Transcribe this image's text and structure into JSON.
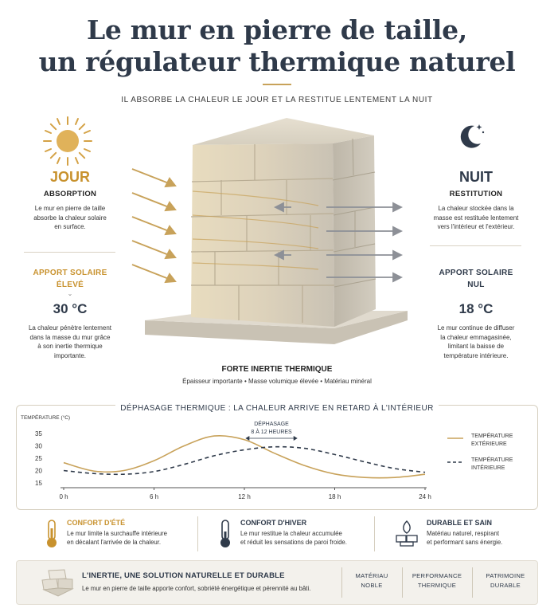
{
  "title": {
    "line1": "Le mur en pierre de taille,",
    "line2": "un régulateur thermique naturel"
  },
  "subtitle": "IL ABSORBE LA CHALEUR LE JOUR ET LA RESTITUE LENTEMENT LA NUIT",
  "day": {
    "heading": "JOUR",
    "subheading": "ABSORPTION",
    "text": [
      "Le mur en pierre de taille",
      "absorbe la chaleur solaire",
      "en surface."
    ],
    "apport_line1": "APPORT SOLAIRE",
    "apport_line2": "ÉLEVÉ",
    "temperature": "30 °C",
    "detail": [
      "La chaleur pénètre lentement",
      "dans la masse du mur grâce",
      "à son inertie thermique",
      "importante."
    ]
  },
  "night": {
    "heading": "NUIT",
    "subheading": "RESTITUTION",
    "text": [
      "La chaleur stockée dans la",
      "masse est restituée lentement",
      "vers l'intérieur et l'extérieur."
    ],
    "apport_line1": "APPORT SOLAIRE",
    "apport_line2": "NUL",
    "temperature": "18 °C",
    "detail": [
      "Le mur continue de diffuser",
      "la chaleur emmagasinée,",
      "limitant la baisse de",
      "température intérieure."
    ]
  },
  "wall": {
    "caption_title": "FORTE INERTIE THERMIQUE",
    "caption_text": "Épaisseur importante • Masse volumique élevée • Matériau minéral"
  },
  "chart_panel_title": "DÉPHASAGE THERMIQUE : LA CHALEUR ARRIVE EN RETARD À L'INTÉRIEUR",
  "chart_data": {
    "type": "line",
    "ylabel": "TEMPÉRATURE (°C)",
    "ylim": [
      15,
      35
    ],
    "yticks": [
      "35",
      "30",
      "25",
      "20",
      "15"
    ],
    "xlim": [
      0,
      24
    ],
    "xticks": [
      "0 h",
      "6 h",
      "12 h",
      "18 h",
      "24 h"
    ],
    "x": [
      0,
      2,
      4,
      6,
      8,
      10,
      12,
      14,
      16,
      18,
      20,
      22,
      24
    ],
    "series": [
      {
        "name": "TEMPÉRATURE EXTÉRIEURE",
        "style": "solid",
        "color": "#c8a25a",
        "values": [
          23.2,
          19.8,
          20.0,
          24.0,
          30.0,
          34.0,
          32.5,
          27.0,
          22.0,
          18.6,
          17.2,
          17.2,
          18.5
        ]
      },
      {
        "name": "TEMPÉRATURE INTÉRIEURE",
        "style": "dashed",
        "color": "#2f3a4a",
        "values": [
          20.0,
          18.8,
          18.5,
          19.6,
          22.5,
          26.0,
          28.4,
          29.6,
          29.0,
          26.5,
          23.5,
          20.8,
          19.3
        ]
      }
    ],
    "annotation": {
      "line1": "DÉPHASAGE",
      "line2": "8 À 12 HEURES"
    },
    "grid": false,
    "legend": "right"
  },
  "features": [
    {
      "title": "CONFORT D'ÉTÉ",
      "icon": "thermometer-warm-icon",
      "color": "#c8922e",
      "lines": [
        "Le mur limite la surchauffe intérieure",
        "en décalant l'arrivée de la chaleur."
      ]
    },
    {
      "title": "CONFORT D'HIVER",
      "icon": "thermometer-cool-icon",
      "color": "#2f3a4a",
      "lines": [
        "Le mur restitue la chaleur accumulée",
        "et réduit les sensations de paroi froide."
      ]
    },
    {
      "title": "DURABLE ET SAIN",
      "icon": "stone-leaf-icon",
      "color": "#2f3a4a",
      "lines": [
        "Matériau naturel, respirant",
        "et performant sans énergie."
      ]
    }
  ],
  "bottom": {
    "title": "L'INERTIE, UNE SOLUTION NATURELLE ET DURABLE",
    "text": "Le mur en pierre de taille apporte confort, sobriété énergétique et pérennité au bâti.",
    "badges": [
      {
        "line1": "MATÉRIAU",
        "line2": "NOBLE"
      },
      {
        "line1": "PERFORMANCE",
        "line2": "THERMIQUE"
      },
      {
        "line1": "PATRIMOINE",
        "line2": "DURABLE"
      }
    ]
  },
  "colors": {
    "gold": "#c8a25a",
    "navy": "#2f3a4a",
    "stone": "#d9cfbb"
  }
}
